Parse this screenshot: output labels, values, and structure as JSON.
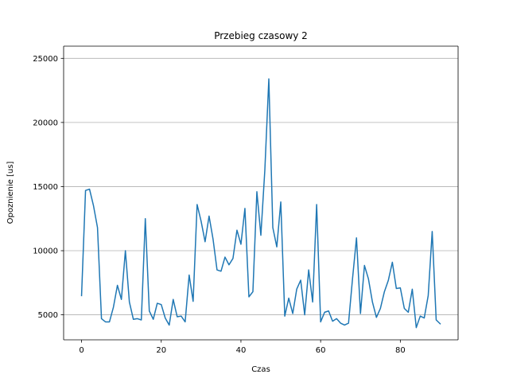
{
  "chart_data": {
    "type": "line",
    "title": "Przebieg czasowy 2",
    "xlabel": "Czas",
    "ylabel": "Opoznienie [us]",
    "xlim": [
      -4.5,
      94.5
    ],
    "ylim": [
      3050,
      25950
    ],
    "xticks": [
      0,
      20,
      40,
      60,
      80
    ],
    "yticks": [
      5000,
      10000,
      15000,
      20000,
      25000
    ],
    "grid": "y",
    "line_color": "#1f77b4",
    "series": [
      {
        "x": [
          0,
          1,
          2,
          3,
          4,
          5,
          6,
          7,
          8,
          9,
          10,
          11,
          12,
          13,
          14,
          15,
          16,
          17,
          18,
          19,
          20,
          21,
          22,
          23,
          24,
          25,
          26,
          27,
          28,
          29,
          30,
          31,
          32,
          33,
          34,
          35,
          36,
          37,
          38,
          39,
          40,
          41,
          42,
          43,
          44,
          45,
          46,
          47,
          48,
          49,
          50,
          51,
          52,
          53,
          54,
          55,
          56,
          57,
          58,
          59,
          60,
          61,
          62,
          63,
          64,
          65,
          66,
          67,
          68,
          69,
          70,
          71,
          72,
          73,
          74,
          75,
          76,
          77,
          78,
          79,
          80,
          81,
          82,
          83,
          84,
          85,
          86,
          87,
          88,
          89,
          90
        ],
        "y": [
          6500,
          14700,
          14800,
          13500,
          11800,
          4700,
          4450,
          4450,
          5600,
          7300,
          6200,
          10000,
          6000,
          4650,
          4700,
          4600,
          12500,
          5300,
          4650,
          5900,
          5800,
          4750,
          4200,
          6200,
          4850,
          4900,
          4450,
          8100,
          6050,
          13600,
          12300,
          10700,
          12700,
          10900,
          8500,
          8400,
          9500,
          8900,
          9400,
          11600,
          10500,
          13300,
          6400,
          6800,
          14600,
          11200,
          16300,
          23400,
          11800,
          10300,
          13800,
          4900,
          6300,
          5100,
          7000,
          7700,
          5000,
          8500,
          6000,
          13600,
          4450,
          5200,
          5300,
          4500,
          4700,
          4350,
          4200,
          4350,
          7800,
          11000,
          5100,
          8850,
          7800,
          6000,
          4800,
          5500,
          6800,
          7700,
          9100,
          7050,
          7100,
          5500,
          5200,
          7000,
          4000,
          4900,
          4750,
          6500,
          11500,
          4600,
          4300
        ]
      }
    ]
  }
}
